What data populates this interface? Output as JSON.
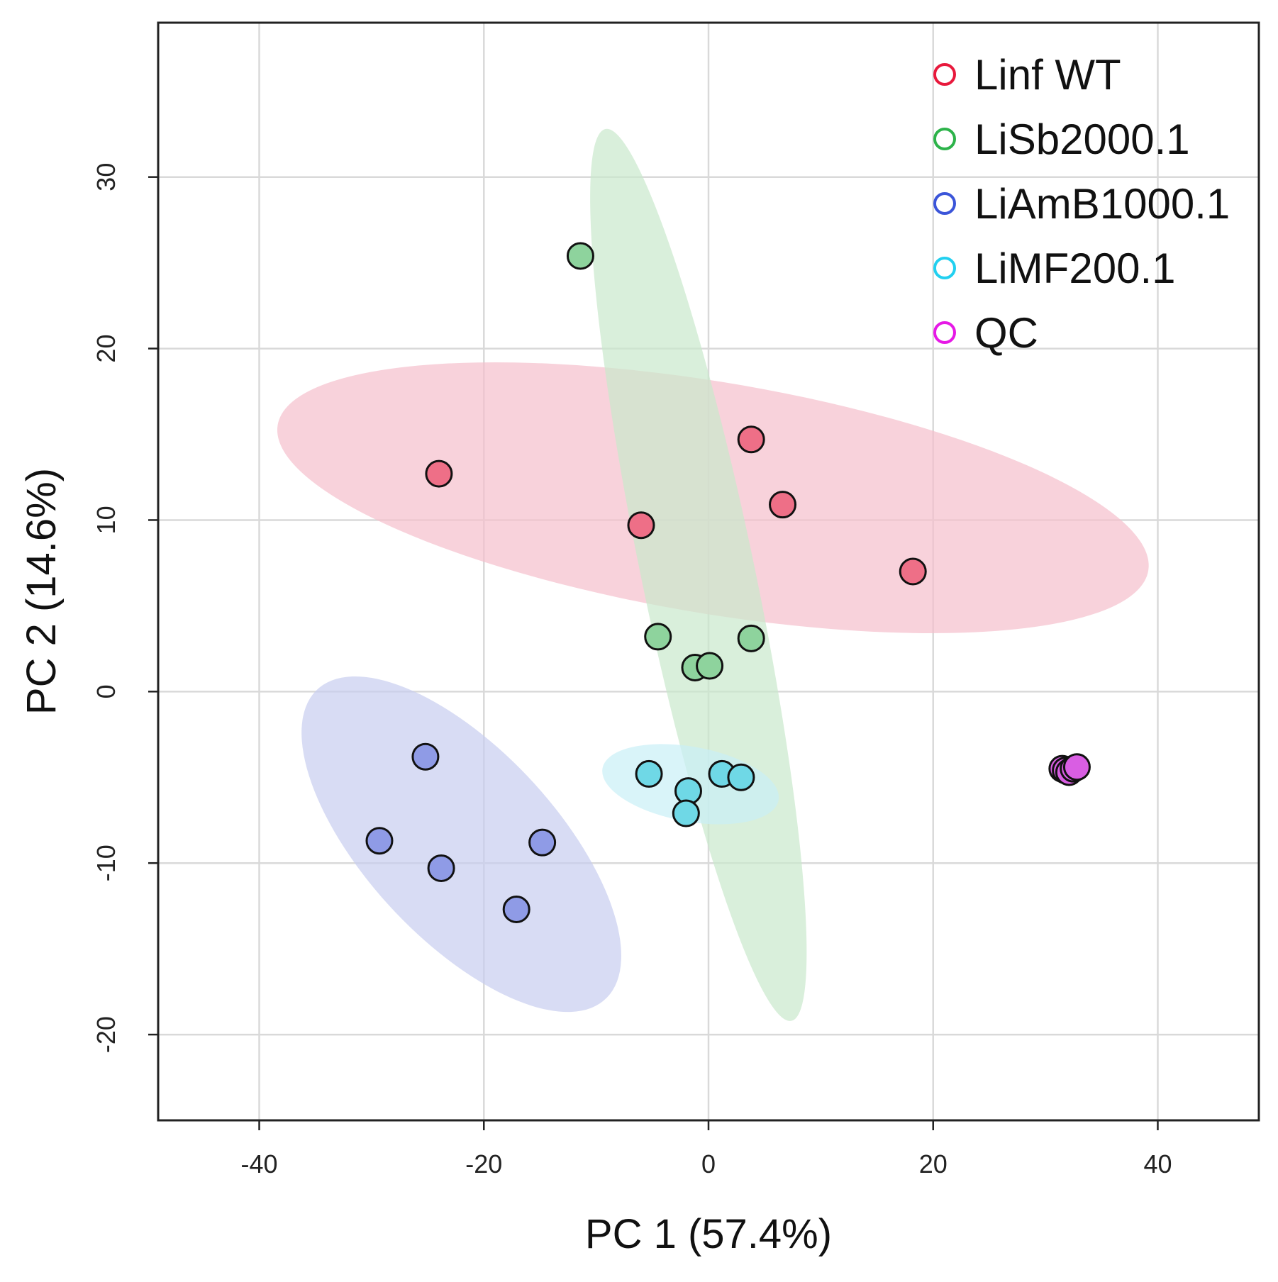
{
  "chart_data": {
    "type": "scatter",
    "title": "",
    "xlabel": "PC 1 (57.4%)",
    "ylabel": "PC 2 (14.6%)",
    "xlim": [
      -49,
      49
    ],
    "ylim": [
      -25,
      39
    ],
    "xticks": [
      -40,
      -20,
      0,
      20,
      40
    ],
    "yticks": [
      -20,
      -10,
      0,
      10,
      20,
      30
    ],
    "xtick_labels": [
      "-40",
      "-20",
      "0",
      "20",
      "40"
    ],
    "ytick_labels": [
      "-20",
      "-10",
      "0",
      "10",
      "20",
      "30"
    ],
    "grid": true,
    "legend_position": "top-right",
    "series": [
      {
        "name": "Linf WT",
        "color": "#e8193c",
        "fill": "#ee6f87",
        "ellipse_fill": "#f5bfcc",
        "ellipse": {
          "cx": 0.4,
          "cy": 11.3,
          "rx": 39,
          "ry": 6.8,
          "angle_deg": -6
        },
        "points": [
          [
            -24,
            12.7
          ],
          [
            -6,
            9.7
          ],
          [
            3.8,
            14.7
          ],
          [
            6.6,
            10.9
          ],
          [
            18.2,
            7.0
          ]
        ]
      },
      {
        "name": "LiSb2000.1",
        "color": "#2db34a",
        "fill": "#8ed39d",
        "ellipse_fill": "#c9e8cc",
        "ellipse": {
          "cx": -0.9,
          "cy": 6.8,
          "rx": 27.3,
          "ry": 4.9,
          "angle_deg": -72
        },
        "points": [
          [
            -11.4,
            25.4
          ],
          [
            -4.5,
            3.2
          ],
          [
            -1.2,
            1.4
          ],
          [
            0.1,
            1.5
          ],
          [
            3.8,
            3.1
          ]
        ]
      },
      {
        "name": "LiAmB1000.1",
        "color": "#3b55d9",
        "fill": "#8f9be6",
        "ellipse_fill": "#c8cdf0",
        "ellipse": {
          "cx": -22,
          "cy": -8.9,
          "rx": 16,
          "ry": 6.5,
          "angle_deg": -30
        },
        "points": [
          [
            -25.2,
            -3.8
          ],
          [
            -29.3,
            -8.7
          ],
          [
            -23.8,
            -10.3
          ],
          [
            -14.8,
            -8.8
          ],
          [
            -17.1,
            -12.7
          ]
        ]
      },
      {
        "name": "LiMF200.1",
        "color": "#22d0f0",
        "fill": "#6fd8e6",
        "ellipse_fill": "#c9eff6",
        "ellipse": {
          "cx": -1.6,
          "cy": -5.4,
          "rx": 7.9,
          "ry": 2.2,
          "angle_deg": -6
        },
        "points": [
          [
            -5.3,
            -4.8
          ],
          [
            -1.8,
            -5.8
          ],
          [
            -2.0,
            -7.1
          ],
          [
            1.2,
            -4.8
          ],
          [
            2.9,
            -5.0
          ]
        ]
      },
      {
        "name": "QC",
        "color": "#e619e6",
        "fill": "#d95ee3",
        "points": [
          [
            31.5,
            -4.5
          ],
          [
            31.8,
            -4.6
          ],
          [
            32.1,
            -4.7
          ],
          [
            32.5,
            -4.5
          ],
          [
            32.8,
            -4.4
          ]
        ]
      }
    ]
  }
}
